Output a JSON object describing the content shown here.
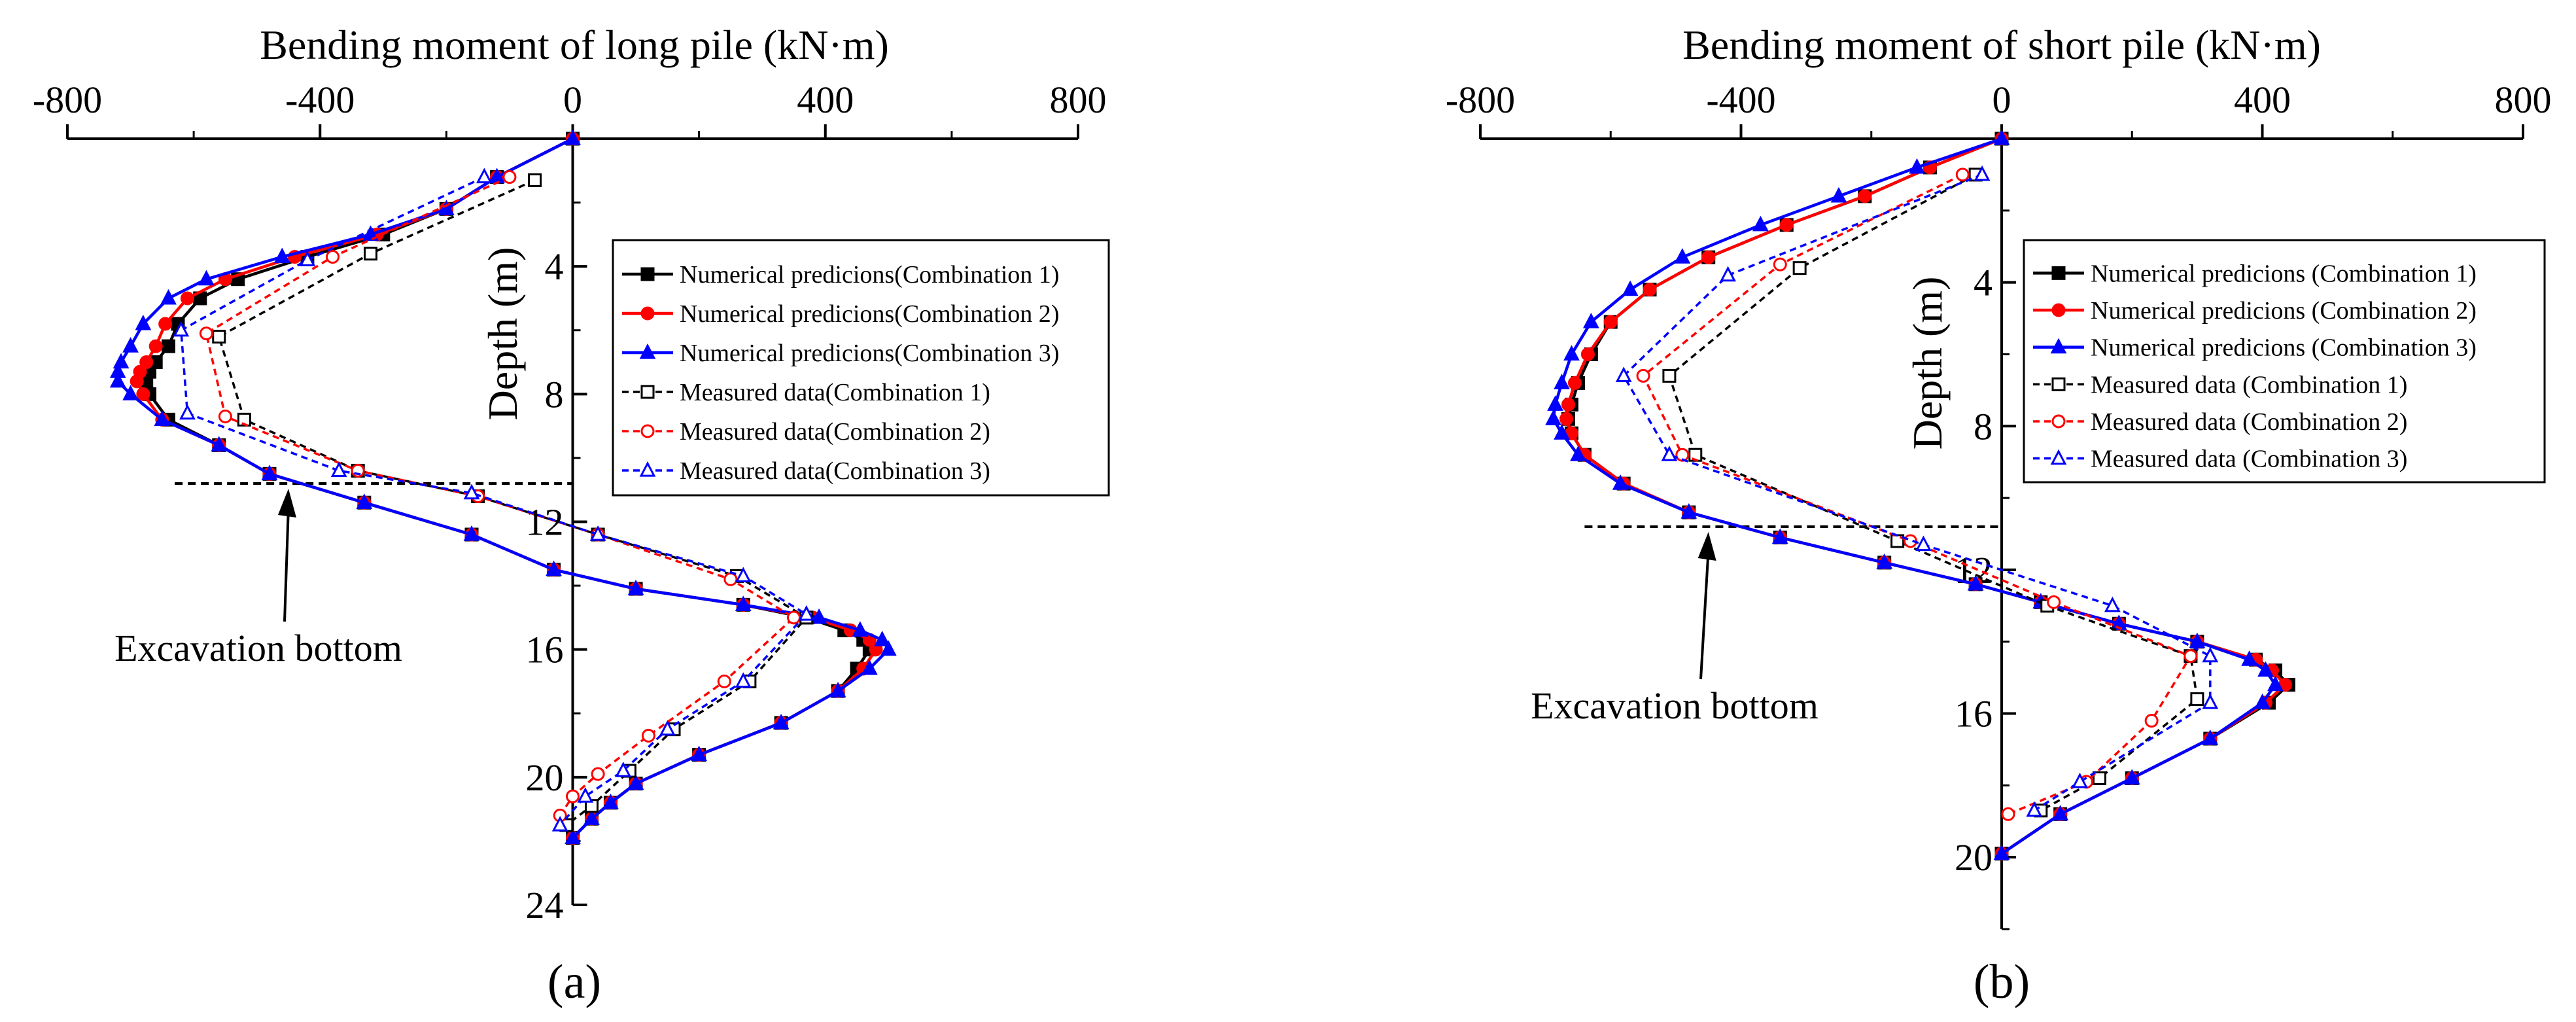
{
  "chart_data": [
    {
      "type": "line",
      "panel_label": "(a)",
      "title": "Bending moment of long pile (kN·m)",
      "xlabel": "Bending moment of long pile (kN·m)",
      "ylabel": "Depth (m)",
      "xlim": [
        -800,
        800
      ],
      "ylim": [
        24,
        0
      ],
      "x_ticks": [
        -800,
        -400,
        0,
        400,
        800
      ],
      "y_ticks": [
        4,
        8,
        12,
        16,
        20,
        24
      ],
      "x_axis_position": "top",
      "y_axis_at_x": 0,
      "grid": false,
      "legend_position": "right-of-y-axis",
      "annotation": {
        "text": "Excavation bottom",
        "depth": 10.8,
        "line_x_range": [
          -630,
          0
        ],
        "arrow_to": [
          -450,
          10.8
        ]
      },
      "series": [
        {
          "name": "Numerical predicions(Combination 1)",
          "color": "#000000",
          "style": "solid",
          "marker": "square-filled",
          "x": [
            0,
            -120,
            -200,
            -300,
            -420,
            -530,
            -590,
            -625,
            -640,
            -660,
            -670,
            -675,
            -670,
            -640,
            -560,
            -480,
            -330,
            -160,
            -30,
            100,
            270,
            370,
            430,
            460,
            470,
            450,
            420,
            330,
            200,
            100,
            60,
            30,
            0
          ],
          "y": [
            0,
            1.2,
            2.2,
            3.0,
            3.7,
            4.4,
            5.0,
            5.8,
            6.5,
            7.0,
            7.3,
            7.6,
            8.0,
            8.8,
            9.6,
            10.5,
            11.4,
            12.4,
            13.5,
            14.1,
            14.6,
            15.0,
            15.4,
            15.7,
            16.0,
            16.6,
            17.3,
            18.3,
            19.3,
            20.2,
            20.8,
            21.3,
            21.9
          ]
        },
        {
          "name": "Numerical predicions(Combination 2)",
          "color": "#ff0000",
          "style": "solid",
          "marker": "circle-filled",
          "x": [
            0,
            -120,
            -200,
            -310,
            -440,
            -550,
            -610,
            -645,
            -660,
            -675,
            -685,
            -690,
            -680,
            -650,
            -560,
            -480,
            -330,
            -160,
            -30,
            100,
            270,
            380,
            440,
            470,
            480,
            460,
            420,
            330,
            200,
            100,
            60,
            30,
            0
          ],
          "y": [
            0,
            1.2,
            2.2,
            3.0,
            3.7,
            4.4,
            5.0,
            5.8,
            6.5,
            7.0,
            7.3,
            7.6,
            8.0,
            8.8,
            9.6,
            10.5,
            11.4,
            12.4,
            13.5,
            14.1,
            14.6,
            15.0,
            15.4,
            15.7,
            16.0,
            16.6,
            17.3,
            18.3,
            19.3,
            20.2,
            20.8,
            21.3,
            21.9
          ]
        },
        {
          "name": "Numerical predicions(Combination 3)",
          "color": "#0000ff",
          "style": "solid",
          "marker": "triangle-filled",
          "x": [
            0,
            -120,
            -200,
            -320,
            -460,
            -580,
            -640,
            -680,
            -700,
            -715,
            -720,
            -720,
            -700,
            -650,
            -560,
            -480,
            -330,
            -160,
            -30,
            100,
            270,
            390,
            455,
            490,
            500,
            470,
            420,
            330,
            200,
            100,
            60,
            30,
            0
          ],
          "y": [
            0,
            1.2,
            2.2,
            3.0,
            3.7,
            4.4,
            5.0,
            5.8,
            6.5,
            7.0,
            7.3,
            7.6,
            8.0,
            8.8,
            9.6,
            10.5,
            11.4,
            12.4,
            13.5,
            14.1,
            14.6,
            15.0,
            15.4,
            15.7,
            16.0,
            16.6,
            17.3,
            18.3,
            19.3,
            20.2,
            20.8,
            21.3,
            21.9
          ]
        },
        {
          "name": "Measured data(Combination 1)",
          "color": "#000000",
          "style": "dashed",
          "marker": "square-open",
          "x": [
            -60,
            -320,
            -560,
            -520,
            -340,
            -150,
            40,
            260,
            370,
            280,
            160,
            90,
            30,
            -10
          ],
          "y": [
            1.3,
            3.6,
            6.2,
            8.8,
            10.4,
            11.2,
            12.4,
            13.7,
            15.0,
            17.0,
            18.5,
            19.8,
            20.9,
            21.5
          ]
        },
        {
          "name": "Measured data(Combination 2)",
          "color": "#ff0000",
          "style": "dashed",
          "marker": "circle-open",
          "x": [
            -100,
            -380,
            -580,
            -550,
            -340,
            -150,
            40,
            250,
            350,
            240,
            120,
            40,
            0,
            -20
          ],
          "y": [
            1.2,
            3.7,
            6.1,
            8.7,
            10.4,
            11.2,
            12.4,
            13.8,
            15.0,
            17.0,
            18.7,
            19.9,
            20.6,
            21.2
          ]
        },
        {
          "name": "Measured data(Combination 3)",
          "color": "#0000ff",
          "style": "dashed",
          "marker": "triangle-open",
          "x": [
            -140,
            -420,
            -620,
            -610,
            -370,
            -160,
            40,
            270,
            370,
            270,
            150,
            80,
            20,
            -20
          ],
          "y": [
            1.2,
            3.8,
            6.0,
            8.6,
            10.4,
            11.1,
            12.4,
            13.7,
            14.9,
            17.0,
            18.5,
            19.8,
            20.6,
            21.5
          ]
        }
      ]
    },
    {
      "type": "line",
      "panel_label": "(b)",
      "title": "Bending moment of short pile (kN·m)",
      "xlabel": "Bending moment of short pile (kN·m)",
      "ylabel": "Depth (m)",
      "xlim": [
        -800,
        800
      ],
      "ylim": [
        22,
        0
      ],
      "x_ticks": [
        -800,
        -400,
        0,
        400,
        800
      ],
      "y_ticks": [
        4,
        8,
        12,
        16,
        20
      ],
      "x_axis_position": "top",
      "y_axis_at_x": 0,
      "grid": false,
      "legend_position": "right-of-y-axis",
      "annotation": {
        "text": "Excavation bottom",
        "depth": 10.8,
        "line_x_range": [
          -640,
          0
        ],
        "arrow_to": [
          -450,
          10.8
        ]
      },
      "series": [
        {
          "name": "Numerical predicions (Combination 1)",
          "color": "#000000",
          "style": "solid",
          "marker": "square-filled",
          "x": [
            0,
            -110,
            -210,
            -330,
            -450,
            -540,
            -600,
            -630,
            -650,
            -660,
            -665,
            -660,
            -640,
            -580,
            -480,
            -340,
            -180,
            -40,
            60,
            180,
            300,
            390,
            420,
            440,
            410,
            320,
            200,
            90,
            0
          ],
          "y": [
            0,
            0.8,
            1.6,
            2.4,
            3.3,
            4.2,
            5.1,
            6.0,
            6.8,
            7.4,
            7.8,
            8.2,
            8.8,
            9.6,
            10.4,
            11.1,
            11.8,
            12.4,
            12.9,
            13.5,
            14.0,
            14.5,
            14.8,
            15.2,
            15.7,
            16.7,
            17.8,
            18.8,
            19.9
          ]
        },
        {
          "name": "Numerical predicions (Combination 2)",
          "color": "#ff0000",
          "style": "solid",
          "marker": "circle-filled",
          "x": [
            0,
            -110,
            -210,
            -330,
            -450,
            -540,
            -600,
            -635,
            -655,
            -665,
            -668,
            -660,
            -640,
            -580,
            -480,
            -340,
            -180,
            -40,
            60,
            180,
            300,
            390,
            415,
            435,
            405,
            320,
            200,
            90,
            0
          ],
          "y": [
            0,
            0.8,
            1.6,
            2.4,
            3.3,
            4.2,
            5.1,
            6.0,
            6.8,
            7.4,
            7.8,
            8.2,
            8.8,
            9.6,
            10.4,
            11.1,
            11.8,
            12.4,
            12.9,
            13.5,
            14.0,
            14.5,
            14.8,
            15.2,
            15.7,
            16.7,
            17.8,
            18.8,
            19.9
          ]
        },
        {
          "name": "Numerical predicions (Combination 3)",
          "color": "#0000ff",
          "style": "solid",
          "marker": "triangle-filled",
          "x": [
            0,
            -130,
            -250,
            -370,
            -490,
            -570,
            -630,
            -660,
            -675,
            -685,
            -688,
            -675,
            -650,
            -585,
            -480,
            -340,
            -180,
            -40,
            60,
            180,
            300,
            380,
            405,
            420,
            400,
            320,
            200,
            90,
            0
          ],
          "y": [
            0,
            0.8,
            1.6,
            2.4,
            3.3,
            4.2,
            5.1,
            6.0,
            6.8,
            7.4,
            7.8,
            8.2,
            8.8,
            9.6,
            10.4,
            11.1,
            11.8,
            12.4,
            12.9,
            13.5,
            14.0,
            14.5,
            14.8,
            15.2,
            15.7,
            16.7,
            17.8,
            18.8,
            19.9
          ]
        },
        {
          "name": "Measured data (Combination 1)",
          "color": "#000000",
          "style": "dashed",
          "marker": "square-open",
          "x": [
            -40,
            -310,
            -510,
            -470,
            -160,
            70,
            290,
            300,
            150,
            60
          ],
          "y": [
            1.0,
            3.6,
            6.6,
            8.8,
            11.2,
            13.0,
            14.4,
            15.6,
            17.8,
            18.7
          ]
        },
        {
          "name": "Measured data (Combination 2)",
          "color": "#ff0000",
          "style": "dashed",
          "marker": "circle-open",
          "x": [
            -60,
            -340,
            -550,
            -490,
            -140,
            80,
            290,
            230,
            130,
            10
          ],
          "y": [
            1.0,
            3.5,
            6.6,
            8.8,
            11.2,
            12.9,
            14.4,
            16.2,
            17.9,
            18.8
          ]
        },
        {
          "name": "Measured data (Combination 3)",
          "color": "#0000ff",
          "style": "dashed",
          "marker": "triangle-open",
          "x": [
            -30,
            -420,
            -580,
            -510,
            -120,
            170,
            320,
            320,
            120,
            50
          ],
          "y": [
            1.0,
            3.8,
            6.6,
            8.8,
            11.3,
            13.0,
            14.4,
            15.7,
            17.9,
            18.7
          ]
        }
      ]
    }
  ]
}
